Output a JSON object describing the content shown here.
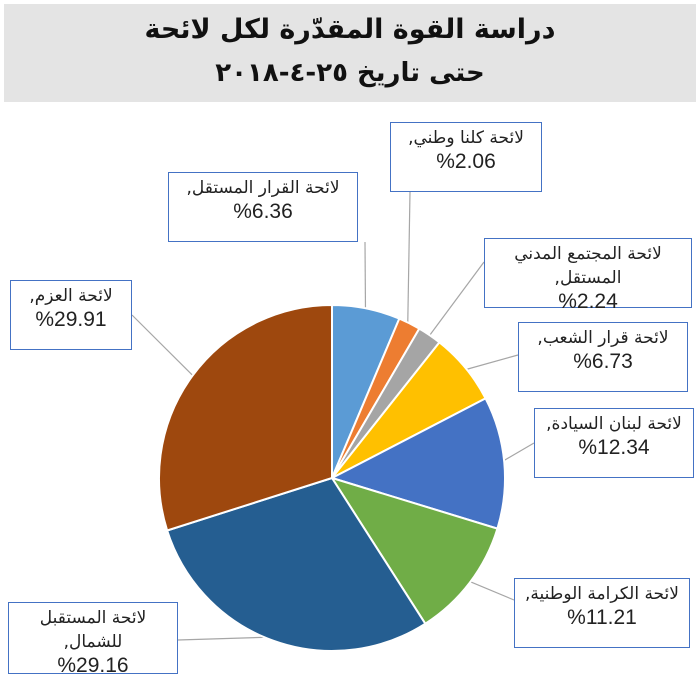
{
  "header": {
    "title_line1": "دراسة القوة المقدّرة لكل لائحة",
    "title_line2": "حتى تاريخ ٢٥-٤-٢٠١٨"
  },
  "chart_data": {
    "type": "pie",
    "start_angle_deg": 0,
    "direction": "clockwise",
    "slices": [
      {
        "label": "لائحة القرار المستقل,",
        "value": 6.36,
        "pct_text": "%6.36",
        "color": "#5b9bd5"
      },
      {
        "label": "لائحة كلنا وطني,",
        "value": 2.06,
        "pct_text": "%2.06",
        "color": "#ed7d31"
      },
      {
        "label": "لائحة المجتمع المدني المستقل,",
        "value": 2.24,
        "pct_text": "%2.24",
        "color": "#a5a5a5"
      },
      {
        "label": "لائحة قرار الشعب,",
        "value": 6.73,
        "pct_text": "%6.73",
        "color": "#ffc000"
      },
      {
        "label": "لائحة لبنان السيادة,",
        "value": 12.34,
        "pct_text": "%12.34",
        "color": "#4472c4"
      },
      {
        "label": "لائحة الكرامة الوطنية,",
        "value": 11.21,
        "pct_text": "%11.21",
        "color": "#70ad47"
      },
      {
        "label": "لائحة المستقبل للشمال,",
        "value": 29.16,
        "pct_text": "%29.16",
        "color": "#255e91"
      },
      {
        "label": "لائحة العزم,",
        "value": 29.91,
        "pct_text": "%29.91",
        "color": "#9e480e"
      }
    ]
  }
}
